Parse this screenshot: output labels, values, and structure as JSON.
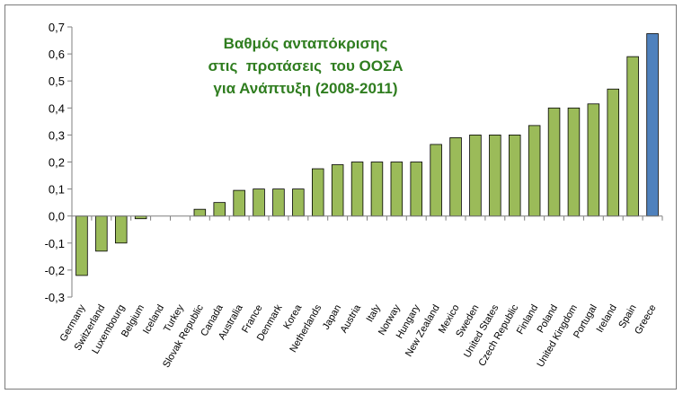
{
  "chart_data": {
    "type": "bar",
    "title_lines": [
      "Βαθμός ανταπόκρισης",
      "στις  προτάσεις  του ΟΟΣΑ",
      "για Ανάπτυξη (2008-2011)"
    ],
    "xlabel": "",
    "ylabel": "",
    "ylim": [
      -0.3,
      0.7
    ],
    "yticks": [
      {
        "value": 0.7,
        "label": "0,7"
      },
      {
        "value": 0.6,
        "label": "0,6"
      },
      {
        "value": 0.5,
        "label": "0,5"
      },
      {
        "value": 0.4,
        "label": "0,4"
      },
      {
        "value": 0.3,
        "label": "0,3"
      },
      {
        "value": 0.2,
        "label": "0,2"
      },
      {
        "value": 0.1,
        "label": "0,1"
      },
      {
        "value": 0.0,
        "label": "0,0"
      },
      {
        "value": -0.1,
        "label": "-0,1"
      },
      {
        "value": -0.2,
        "label": "-0,2"
      },
      {
        "value": -0.3,
        "label": "-0,3"
      }
    ],
    "grid": false,
    "categories": [
      "Germany",
      "Switzerland",
      "Luxembourg",
      "Belgium",
      "Iceland",
      "Turkey",
      "Slovak Republic",
      "Canada",
      "Australia",
      "France",
      "Denmark",
      "Korea",
      "Netherlands",
      "Japan",
      "Austria",
      "Italy",
      "Norway",
      "Hungary",
      "New Zealand",
      "Mexico",
      "Sweden",
      "United States",
      "Czech Republic",
      "Finland",
      "Poland",
      "United Kingdom",
      "Portugal",
      "Ireland",
      "Spain",
      "Greece"
    ],
    "values": [
      -0.22,
      -0.13,
      -0.1,
      -0.01,
      0.0,
      0.0,
      0.025,
      0.05,
      0.095,
      0.1,
      0.1,
      0.1,
      0.175,
      0.19,
      0.2,
      0.2,
      0.2,
      0.2,
      0.265,
      0.29,
      0.3,
      0.3,
      0.3,
      0.335,
      0.4,
      0.4,
      0.415,
      0.47,
      0.59,
      0.675
    ],
    "colors": {
      "default_bar": "#9bbb59",
      "highlight_bar": "#4f81bd",
      "bar_outline": "#000000",
      "title": "#2f7d1f",
      "axis": "#7f7f7f"
    },
    "highlight_category": "Greece"
  }
}
